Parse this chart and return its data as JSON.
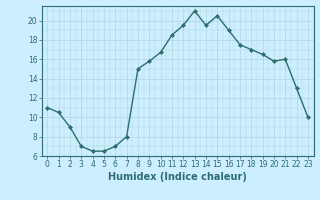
{
  "xlabel": "Humidex (Indice chaleur)",
  "x": [
    0,
    1,
    2,
    3,
    4,
    5,
    6,
    7,
    8,
    9,
    10,
    11,
    12,
    13,
    14,
    15,
    16,
    17,
    18,
    19,
    20,
    21,
    22,
    23
  ],
  "y": [
    11,
    10.5,
    9,
    7,
    6.5,
    6.5,
    7,
    8,
    15,
    15.8,
    16.7,
    18.5,
    19.5,
    21,
    19.5,
    20.5,
    19,
    17.5,
    17,
    16.5,
    15.8,
    16,
    13,
    10
  ],
  "line_color": "#2d6e6e",
  "marker": "D",
  "marker_size": 2.0,
  "background_color": "#cceeff",
  "grid_color": "#b0d8d8",
  "ylim": [
    6,
    21.5
  ],
  "yticks": [
    6,
    8,
    10,
    12,
    14,
    16,
    18,
    20
  ],
  "xlim": [
    -0.5,
    23.5
  ],
  "xticks": [
    0,
    1,
    2,
    3,
    4,
    5,
    6,
    7,
    8,
    9,
    10,
    11,
    12,
    13,
    14,
    15,
    16,
    17,
    18,
    19,
    20,
    21,
    22,
    23
  ],
  "xlabel_fontsize": 7,
  "tick_fontsize": 5.5,
  "line_width": 1.0
}
